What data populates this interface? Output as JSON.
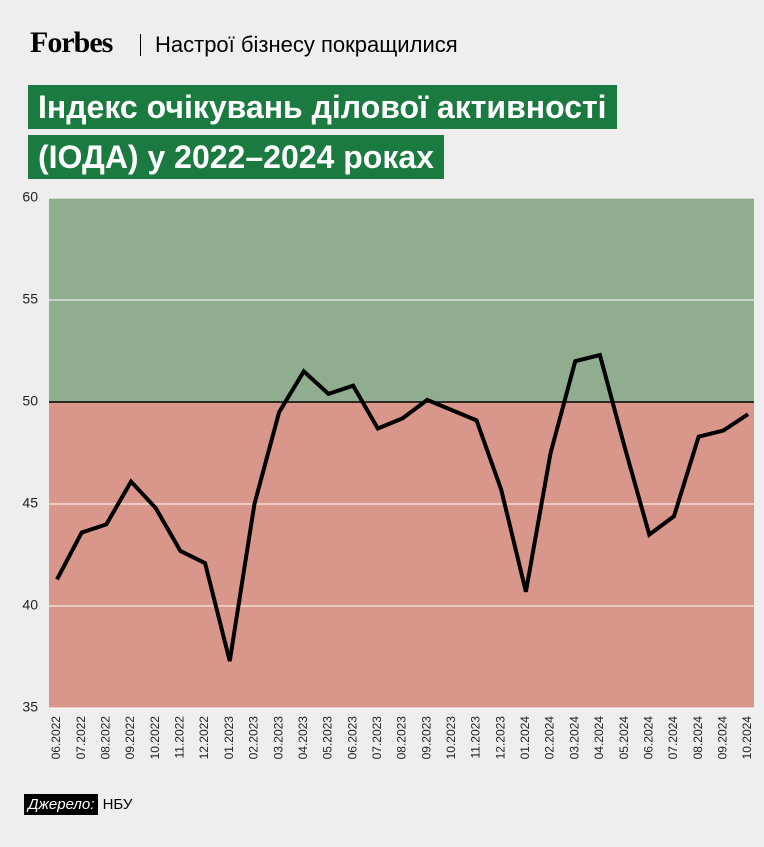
{
  "header": {
    "brand": "Forbes",
    "tagline": "Настрої бізнесу покращилися"
  },
  "chart_data": {
    "type": "line",
    "title": "Індекс очікувань ділової активності (ІОДА) у 2022–2024 роках",
    "categories": [
      "06.2022",
      "07.2022",
      "08.2022",
      "09.2022",
      "10.2022",
      "11.2022",
      "12.2022",
      "01.2023",
      "02.2023",
      "03.2023",
      "04.2023",
      "05.2023",
      "06.2023",
      "07.2023",
      "08.2023",
      "09.2023",
      "10.2023",
      "11.2023",
      "12.2023",
      "01.2024",
      "02.2024",
      "03.2024",
      "04.2024",
      "05.2024",
      "06.2024",
      "07.2024",
      "08.2024",
      "09.2024",
      "10.2024"
    ],
    "values": [
      41.3,
      43.6,
      44.0,
      46.1,
      44.8,
      42.7,
      42.1,
      37.3,
      45.0,
      49.5,
      51.5,
      50.4,
      50.8,
      48.7,
      49.2,
      50.1,
      49.6,
      49.1,
      45.7,
      40.7,
      47.5,
      52.0,
      52.3,
      47.8,
      43.5,
      44.4,
      48.3,
      48.6,
      49.4
    ],
    "color": "#000000",
    "ylim": [
      35,
      60
    ],
    "yticks": [
      35,
      40,
      45,
      50,
      55,
      60
    ],
    "grid": true,
    "threshold": 50,
    "above_color": "#90ad90",
    "below_color": "#d9968a"
  },
  "source": {
    "label": "Джерело:",
    "text": "НБУ"
  }
}
